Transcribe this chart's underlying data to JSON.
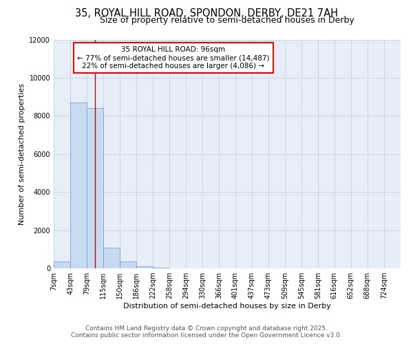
{
  "title_line1": "35, ROYAL HILL ROAD, SPONDON, DERBY, DE21 7AH",
  "title_line2": "Size of property relative to semi-detached houses in Derby",
  "xlabel": "Distribution of semi-detached houses by size in Derby",
  "ylabel": "Number of semi-detached properties",
  "footnote1": "Contains HM Land Registry data © Crown copyright and database right 2025.",
  "footnote2": "Contains public sector information licensed under the Open Government Licence v3.0.",
  "annotation_title": "35 ROYAL HILL ROAD: 96sqm",
  "annotation_line2": "← 77% of semi-detached houses are smaller (14,487)",
  "annotation_line3": "22% of semi-detached houses are larger (4,086) →",
  "bin_labels": [
    "7sqm",
    "43sqm",
    "79sqm",
    "115sqm",
    "150sqm",
    "186sqm",
    "222sqm",
    "258sqm",
    "294sqm",
    "330sqm",
    "366sqm",
    "401sqm",
    "437sqm",
    "473sqm",
    "509sqm",
    "545sqm",
    "581sqm",
    "616sqm",
    "652sqm",
    "688sqm",
    "724sqm"
  ],
  "bin_edges": [
    7,
    43,
    79,
    115,
    150,
    186,
    222,
    258,
    294,
    330,
    366,
    401,
    437,
    473,
    509,
    545,
    581,
    616,
    652,
    688,
    724,
    760
  ],
  "bar_heights": [
    350,
    8700,
    8400,
    1100,
    350,
    100,
    30,
    10,
    0,
    0,
    0,
    0,
    0,
    0,
    0,
    0,
    0,
    0,
    0,
    0,
    0
  ],
  "bar_color": "#c8daf0",
  "bar_edgecolor": "#6699cc",
  "vline_color": "#cc0000",
  "vline_x": 96,
  "ylim": [
    0,
    12000
  ],
  "yticks": [
    0,
    2000,
    4000,
    6000,
    8000,
    10000,
    12000
  ],
  "grid_color": "#c8d4e8",
  "background_color": "#e8eef8",
  "title_fontsize": 10.5,
  "subtitle_fontsize": 9,
  "axis_label_fontsize": 8,
  "tick_fontsize": 7,
  "annotation_fontsize": 7.5,
  "footnote_fontsize": 6.5
}
